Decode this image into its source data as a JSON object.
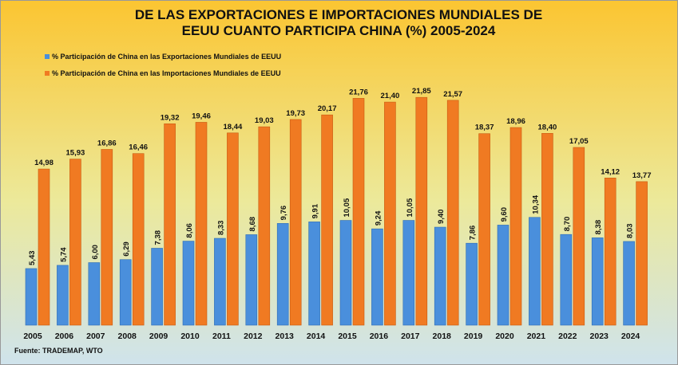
{
  "chart_data": {
    "type": "bar",
    "title": "DE LAS EXPORTACIONES E IMPORTACIONES MUNDIALES DE EEUU CUANTO PARTICIPA CHINA (%) 2005-2024",
    "categories": [
      "2005",
      "2006",
      "2007",
      "2008",
      "2009",
      "2010",
      "2011",
      "2012",
      "2013",
      "2014",
      "2015",
      "2016",
      "2017",
      "2018",
      "2019",
      "2020",
      "2021",
      "2022",
      "2023",
      "2024"
    ],
    "series": [
      {
        "name": "% Participación de China en las Exportaciones Mundiales de EEUU",
        "color": "#4a8fdc",
        "values": [
          5.43,
          5.74,
          6.0,
          6.29,
          7.38,
          8.06,
          8.33,
          8.68,
          9.76,
          9.91,
          10.05,
          9.24,
          10.05,
          9.4,
          7.86,
          9.6,
          10.34,
          8.7,
          8.38,
          8.03
        ],
        "value_labels": [
          "5,43",
          "5,74",
          "6,00",
          "6,29",
          "7,38",
          "8,06",
          "8,33",
          "8,68",
          "9,76",
          "9,91",
          "10,05",
          "9,24",
          "10,05",
          "9,40",
          "7,86",
          "9,60",
          "10,34",
          "8,70",
          "8,38",
          "8,03"
        ]
      },
      {
        "name": "% Participación de China en las Importaciones Mundiales de EEUU",
        "color": "#f07a22",
        "values": [
          14.98,
          15.93,
          16.86,
          16.46,
          19.32,
          19.46,
          18.44,
          19.03,
          19.73,
          20.17,
          21.76,
          21.4,
          21.85,
          21.57,
          18.37,
          18.96,
          18.4,
          17.05,
          14.12,
          13.77
        ],
        "value_labels": [
          "14,98",
          "15,93",
          "16,86",
          "16,46",
          "19,32",
          "19,46",
          "18,44",
          "19,03",
          "19,73",
          "20,17",
          "21,76",
          "21,40",
          "21,85",
          "21,57",
          "18,37",
          "18,96",
          "18,40",
          "17,05",
          "14,12",
          "13,77"
        ]
      }
    ],
    "ylim": [
      0,
      25
    ],
    "legend": "top-left",
    "source": "Fuente: TRADEMAP,  WTO"
  }
}
